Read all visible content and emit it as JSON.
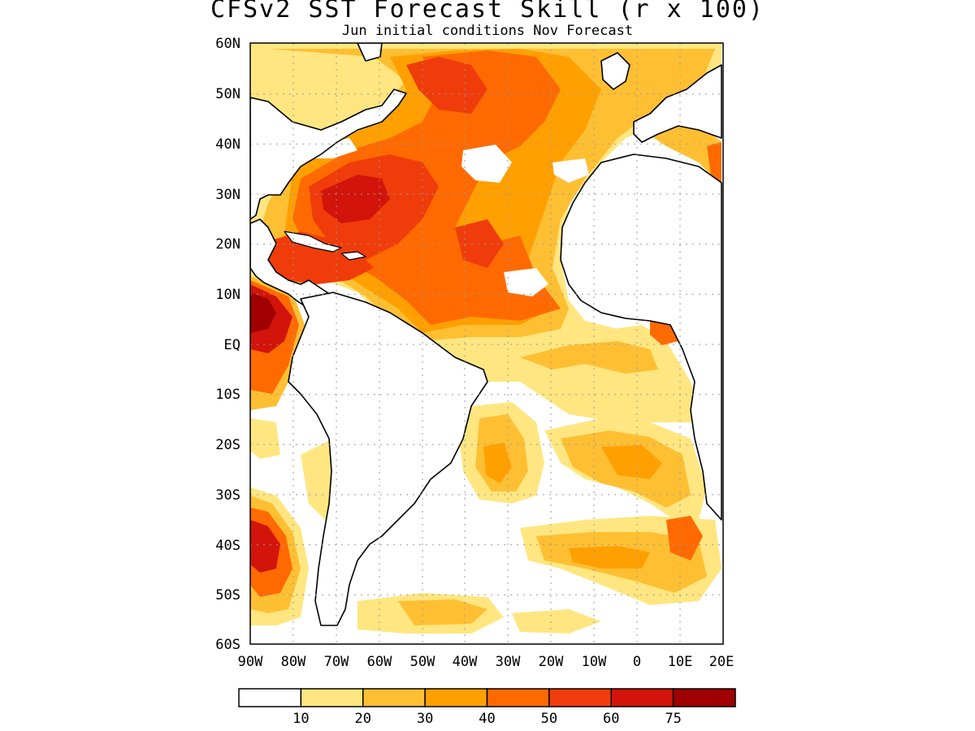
{
  "title": "CFSv2 SST Forecast Skill (r x 100)",
  "subtitle": "Jun initial conditions  Nov Forecast",
  "lat_labels": [
    "60N",
    "50N",
    "40N",
    "30N",
    "20N",
    "10N",
    "EQ",
    "10S",
    "20S",
    "30S",
    "40S",
    "50S",
    "60S"
  ],
  "lon_labels": [
    "90W",
    "80W",
    "70W",
    "60W",
    "50W",
    "40W",
    "30W",
    "20W",
    "10W",
    "0",
    "10E",
    "20E"
  ],
  "colorbar": {
    "colors": [
      "#ffffff",
      "#ffe680",
      "#ffbf33",
      "#ffa000",
      "#ff6a00",
      "#f03c0a",
      "#d2140a",
      "#a00000"
    ],
    "labels": [
      "10",
      "20",
      "30",
      "40",
      "50",
      "60",
      "75"
    ]
  },
  "palette": {
    "ocean_white": "#ffffff",
    "coast": "#000000",
    "grid": "#9a9a9a"
  }
}
